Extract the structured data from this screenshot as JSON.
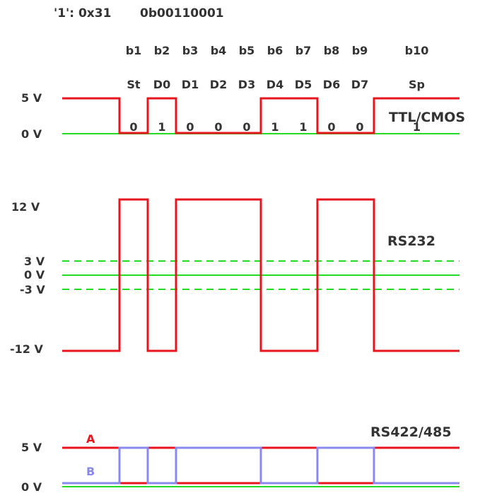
{
  "header": {
    "char_label": "'1': 0x31",
    "binary_label": "0b00110001"
  },
  "bit_positions": [
    "b1",
    "b2",
    "b3",
    "b4",
    "b5",
    "b6",
    "b7",
    "b8",
    "b9",
    "b10"
  ],
  "bit_names": [
    "St",
    "D0",
    "D1",
    "D2",
    "D3",
    "D4",
    "D5",
    "D6",
    "D7",
    "Sp"
  ],
  "bit_values": [
    "0",
    "1",
    "0",
    "0",
    "0",
    "1",
    "1",
    "0",
    "0",
    "1"
  ],
  "ttl": {
    "name": "TTL/CMOS",
    "high_label": "5 V",
    "low_label": "0 V",
    "levels": [
      1,
      0,
      1,
      0,
      0,
      0,
      1,
      1,
      0,
      0,
      1,
      1
    ]
  },
  "rs232": {
    "name": "RS232",
    "labels": [
      "12 V",
      "3 V",
      "0 V",
      "-3 V",
      "-12 V"
    ],
    "levels": [
      -12,
      12,
      -12,
      12,
      12,
      12,
      -12,
      -12,
      12,
      12,
      -12,
      -12
    ]
  },
  "rs485": {
    "name": "RS422/485",
    "high_label": "5 V",
    "low_label": "0 V",
    "line_a": "A",
    "line_b": "B",
    "levels_a": [
      1,
      0,
      1,
      0,
      0,
      0,
      1,
      1,
      0,
      0,
      1,
      1
    ],
    "levels_b": [
      0,
      1,
      0,
      1,
      1,
      1,
      0,
      0,
      1,
      1,
      0,
      0
    ]
  },
  "colors": {
    "signal": "#e8141e",
    "ground": "#22dd22",
    "line_b": "#8888ee",
    "text": "#333333"
  }
}
